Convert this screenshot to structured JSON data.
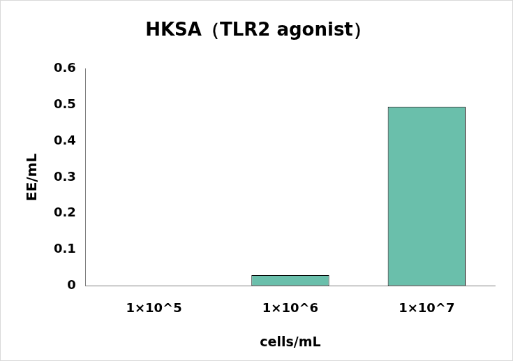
{
  "chart_data": {
    "type": "bar",
    "title": "HKSA（TLR2 agonist）",
    "categories": [
      "1×10^5",
      "1×10^6",
      "1×10^7"
    ],
    "values": [
      0,
      0.03,
      0.495
    ],
    "color": "#6abfab",
    "x_label": "cells/mL",
    "y_label": "EE/mL",
    "ylim": [
      0,
      0.6
    ],
    "yticks": [
      0,
      0.1,
      0.2,
      0.3,
      0.4,
      0.5,
      0.6
    ],
    "grid": false
  }
}
